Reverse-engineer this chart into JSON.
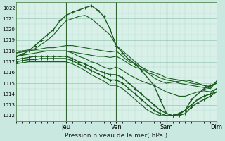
{
  "xlabel": "Pression niveau de la mer( hPa )",
  "bg_color": "#c8e8e0",
  "plot_bg_color": "#d8f0e8",
  "grid_color_minor": "#b0d8cc",
  "grid_color_major": "#98c8b8",
  "line_color": "#1a5c20",
  "sep_color": "#336633",
  "ylim": [
    1011.5,
    1022.5
  ],
  "yticks": [
    1012,
    1013,
    1014,
    1015,
    1016,
    1017,
    1018,
    1019,
    1020,
    1021,
    1022
  ],
  "xlim": [
    0,
    96
  ],
  "day_ticks": [
    24,
    48,
    72,
    96
  ],
  "day_labels": [
    "Jeu",
    "Ven",
    "Sam",
    "Dim"
  ],
  "lines": [
    {
      "x": [
        0,
        3,
        6,
        9,
        12,
        15,
        18,
        21,
        24,
        27,
        30,
        33,
        36,
        39,
        42,
        45,
        48,
        51,
        54,
        57,
        60,
        63,
        66,
        69,
        72,
        75,
        78,
        81,
        84,
        87,
        90,
        93,
        96
      ],
      "y": [
        1017.5,
        1017.7,
        1018.0,
        1018.5,
        1019.0,
        1019.5,
        1020.0,
        1020.8,
        1021.3,
        1021.6,
        1021.8,
        1022.0,
        1022.2,
        1021.8,
        1021.2,
        1020.0,
        1018.5,
        1017.8,
        1017.2,
        1016.8,
        1016.2,
        1015.5,
        1014.8,
        1013.5,
        1012.2,
        1012.0,
        1012.1,
        1012.5,
        1013.5,
        1014.0,
        1014.5,
        1014.8,
        1015.0
      ],
      "marker": true,
      "lw": 1.0
    },
    {
      "x": [
        0,
        3,
        6,
        9,
        12,
        15,
        18,
        21,
        24,
        27,
        30,
        33,
        36,
        39,
        42,
        45,
        48,
        51,
        54,
        57,
        60,
        63,
        66,
        69,
        72,
        75,
        78,
        81,
        84,
        87,
        90,
        93,
        96
      ],
      "y": [
        1017.8,
        1018.0,
        1018.1,
        1018.2,
        1018.6,
        1019.0,
        1019.5,
        1020.2,
        1020.8,
        1021.0,
        1021.2,
        1021.3,
        1021.0,
        1020.5,
        1020.0,
        1019.5,
        1018.5,
        1018.0,
        1017.5,
        1017.0,
        1016.5,
        1016.0,
        1015.5,
        1015.2,
        1015.0,
        1015.1,
        1015.2,
        1015.3,
        1015.2,
        1015.0,
        1014.8,
        1014.5,
        1015.2
      ],
      "marker": false,
      "lw": 0.8
    },
    {
      "x": [
        0,
        3,
        6,
        9,
        12,
        15,
        18,
        21,
        24,
        27,
        30,
        33,
        36,
        39,
        42,
        45,
        48,
        51,
        54,
        57,
        60,
        63,
        66,
        69,
        72,
        75,
        78,
        81,
        84,
        87,
        90,
        93,
        96
      ],
      "y": [
        1017.8,
        1017.9,
        1018.0,
        1018.1,
        1018.2,
        1018.3,
        1018.3,
        1018.4,
        1018.5,
        1018.5,
        1018.4,
        1018.3,
        1018.2,
        1018.1,
        1018.0,
        1017.9,
        1018.0,
        1017.5,
        1017.0,
        1016.8,
        1016.5,
        1016.2,
        1016.0,
        1015.8,
        1015.5,
        1015.4,
        1015.3,
        1015.2,
        1015.0,
        1014.9,
        1014.8,
        1014.7,
        1015.0
      ],
      "marker": false,
      "lw": 0.8
    },
    {
      "x": [
        0,
        3,
        6,
        9,
        12,
        15,
        18,
        21,
        24,
        27,
        30,
        33,
        36,
        39,
        42,
        45,
        48,
        51,
        54,
        57,
        60,
        63,
        66,
        69,
        72,
        75,
        78,
        81,
        84,
        87,
        90,
        93,
        96
      ],
      "y": [
        1018.0,
        1018.0,
        1018.0,
        1018.0,
        1018.0,
        1018.0,
        1018.0,
        1018.0,
        1018.0,
        1017.9,
        1017.8,
        1017.7,
        1017.6,
        1017.5,
        1017.5,
        1017.4,
        1017.5,
        1017.2,
        1016.8,
        1016.5,
        1016.3,
        1016.0,
        1015.8,
        1015.5,
        1015.3,
        1015.2,
        1015.0,
        1014.9,
        1014.8,
        1014.7,
        1014.6,
        1014.5,
        1015.2
      ],
      "marker": false,
      "lw": 0.8
    },
    {
      "x": [
        0,
        3,
        6,
        9,
        12,
        15,
        18,
        21,
        24,
        27,
        30,
        33,
        36,
        39,
        42,
        45,
        48,
        51,
        54,
        57,
        60,
        63,
        66,
        69,
        72,
        75,
        78,
        81,
        84,
        87,
        90,
        93,
        96
      ],
      "y": [
        1017.5,
        1017.6,
        1017.7,
        1017.8,
        1017.9,
        1018.0,
        1018.0,
        1018.0,
        1018.0,
        1017.8,
        1017.5,
        1017.3,
        1017.0,
        1016.8,
        1016.5,
        1016.3,
        1016.5,
        1016.2,
        1015.8,
        1015.5,
        1015.2,
        1015.0,
        1014.8,
        1014.5,
        1014.2,
        1014.0,
        1013.8,
        1013.8,
        1014.0,
        1014.2,
        1014.3,
        1014.2,
        1014.5
      ],
      "marker": false,
      "lw": 0.8
    },
    {
      "x": [
        0,
        3,
        6,
        9,
        12,
        15,
        18,
        21,
        24,
        27,
        30,
        33,
        36,
        39,
        42,
        45,
        48,
        51,
        54,
        57,
        60,
        63,
        66,
        69,
        72,
        75,
        78,
        81,
        84,
        87,
        90,
        93,
        96
      ],
      "y": [
        1017.2,
        1017.3,
        1017.4,
        1017.5,
        1017.5,
        1017.5,
        1017.5,
        1017.5,
        1017.5,
        1017.3,
        1017.0,
        1016.8,
        1016.5,
        1016.2,
        1016.0,
        1015.8,
        1015.8,
        1015.5,
        1015.0,
        1014.5,
        1014.0,
        1013.5,
        1013.0,
        1012.5,
        1012.2,
        1012.0,
        1012.0,
        1012.2,
        1012.8,
        1013.2,
        1013.5,
        1013.8,
        1014.2
      ],
      "marker": true,
      "lw": 1.0
    },
    {
      "x": [
        0,
        3,
        6,
        9,
        12,
        15,
        18,
        21,
        24,
        27,
        30,
        33,
        36,
        39,
        42,
        45,
        48,
        51,
        54,
        57,
        60,
        63,
        66,
        69,
        72,
        75,
        78,
        81,
        84,
        87,
        90,
        93,
        96
      ],
      "y": [
        1017.0,
        1017.1,
        1017.2,
        1017.2,
        1017.3,
        1017.3,
        1017.3,
        1017.3,
        1017.3,
        1017.1,
        1016.8,
        1016.5,
        1016.2,
        1015.9,
        1015.6,
        1015.3,
        1015.3,
        1015.0,
        1014.5,
        1014.0,
        1013.5,
        1013.0,
        1012.5,
        1012.2,
        1012.0,
        1012.0,
        1012.2,
        1012.5,
        1013.0,
        1013.5,
        1013.8,
        1014.0,
        1014.2
      ],
      "marker": true,
      "lw": 1.0
    },
    {
      "x": [
        0,
        3,
        6,
        9,
        12,
        15,
        18,
        21,
        24,
        27,
        30,
        33,
        36,
        39,
        42,
        45,
        48,
        51,
        54,
        57,
        60,
        63,
        66,
        69,
        72,
        75,
        78,
        81,
        84,
        87,
        90,
        93,
        96
      ],
      "y": [
        1016.8,
        1016.9,
        1017.0,
        1017.0,
        1017.0,
        1017.0,
        1017.0,
        1017.0,
        1017.0,
        1016.8,
        1016.5,
        1016.2,
        1015.8,
        1015.5,
        1015.2,
        1014.8,
        1014.8,
        1014.5,
        1014.0,
        1013.5,
        1013.0,
        1012.5,
        1012.2,
        1012.0,
        1012.0,
        1012.0,
        1012.2,
        1012.5,
        1013.0,
        1013.5,
        1013.8,
        1014.0,
        1014.5
      ],
      "marker": false,
      "lw": 0.8
    }
  ]
}
